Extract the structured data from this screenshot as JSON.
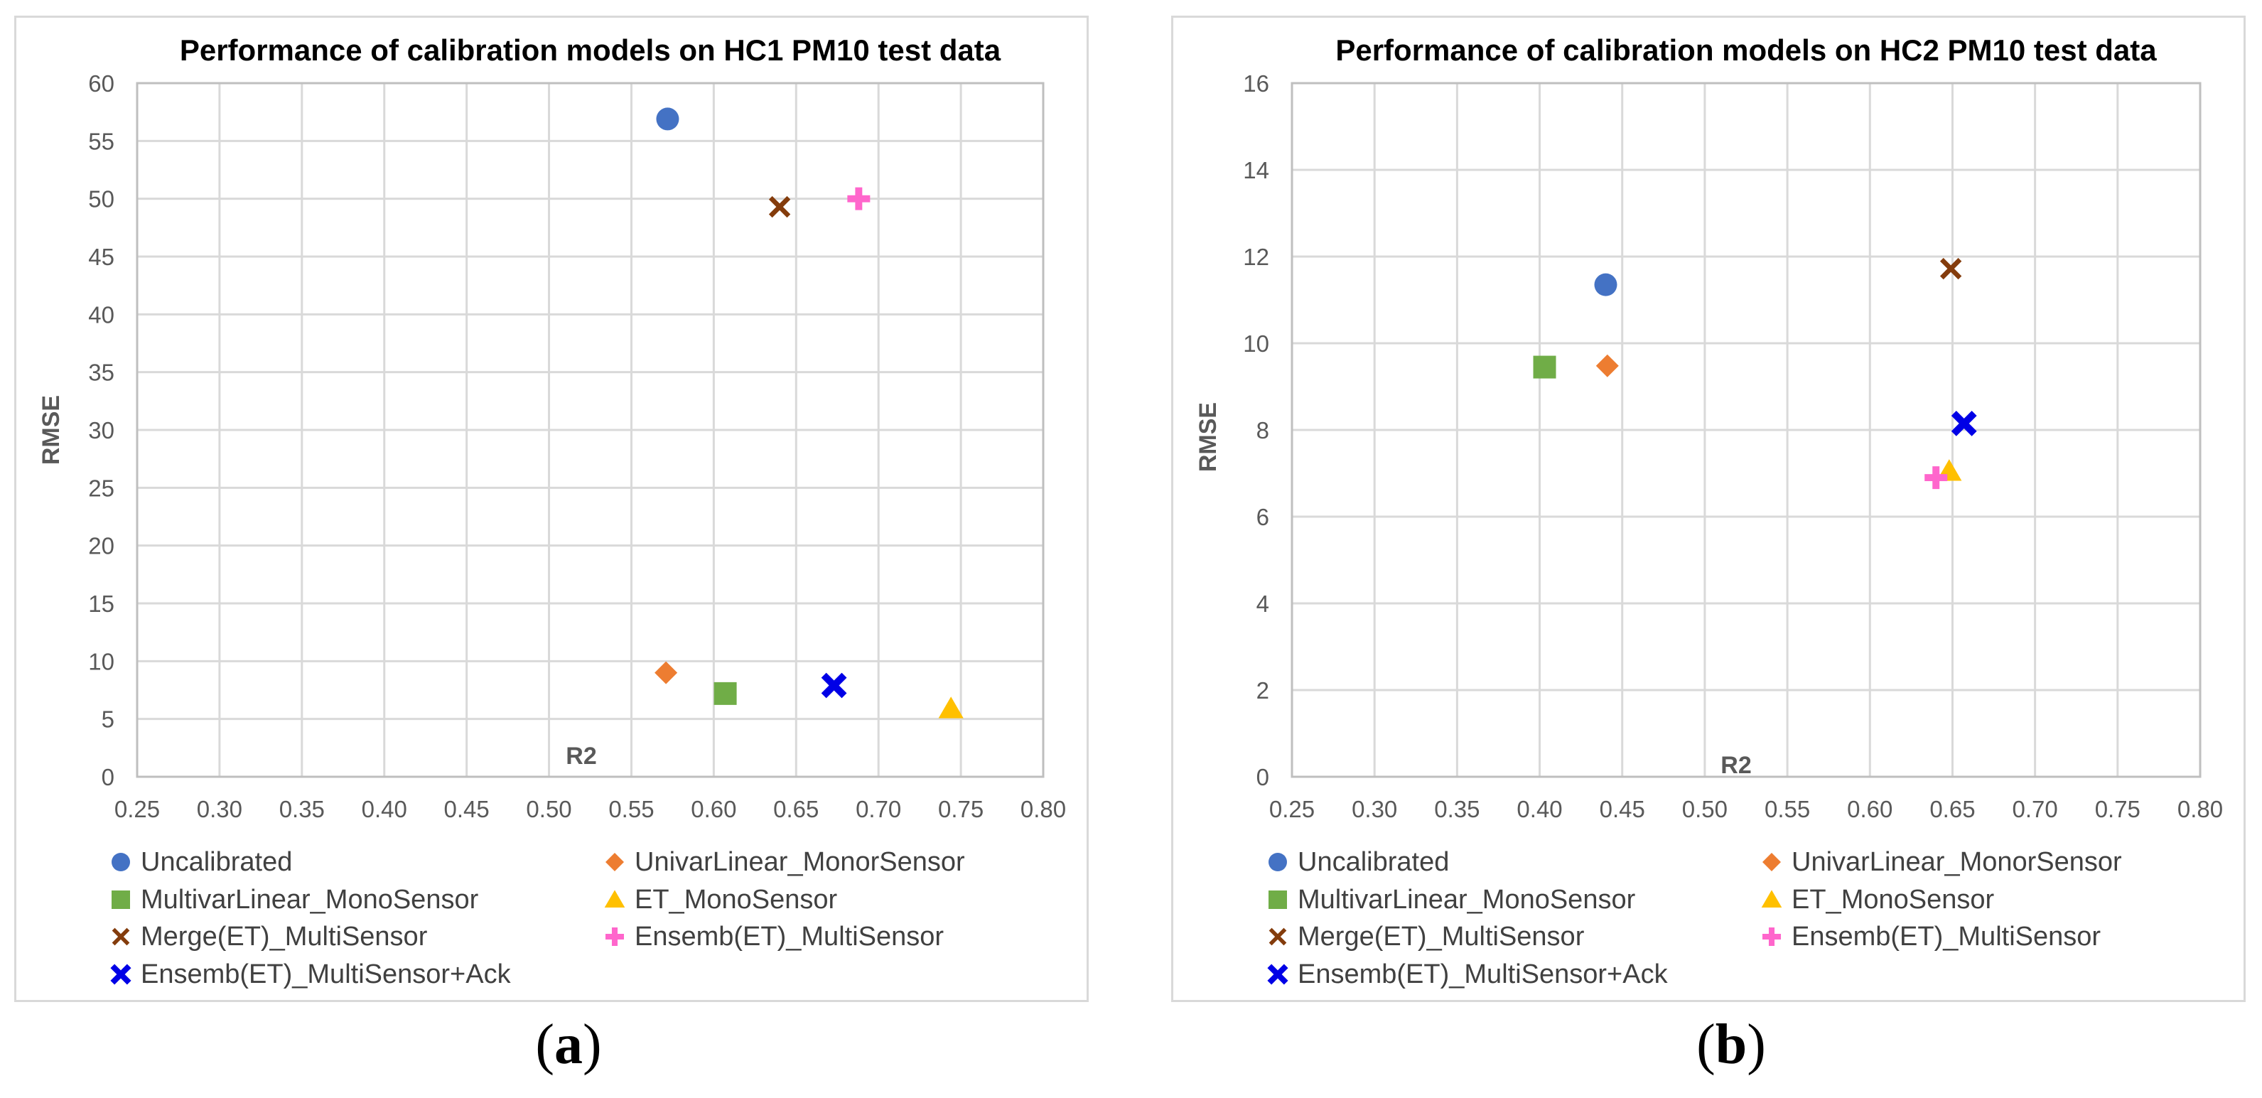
{
  "panels": [
    {
      "caption_letter": "a",
      "chart_data": {
        "type": "scatter",
        "title": "Performance of calibration models on HC1 PM10 test data",
        "xlabel": "R2",
        "ylabel": "RMSE",
        "xlim": [
          0.25,
          0.8
        ],
        "ylim": [
          0,
          60
        ],
        "xticks": [
          "0.25",
          "0.30",
          "0.35",
          "0.40",
          "0.45",
          "0.50",
          "0.55",
          "0.60",
          "0.65",
          "0.70",
          "0.75",
          "0.80"
        ],
        "yticks": [
          "0",
          "5",
          "10",
          "15",
          "20",
          "25",
          "30",
          "35",
          "40",
          "45",
          "50",
          "55",
          "60"
        ],
        "grid": true,
        "legend_position": "bottom",
        "series": [
          {
            "name": "Uncalibrated",
            "marker": "circle",
            "color": "#4472c4",
            "x": 0.572,
            "y": 56.9
          },
          {
            "name": "UnivarLinear_MonorSensor",
            "marker": "diamond",
            "color": "#ed7d31",
            "x": 0.571,
            "y": 9.0
          },
          {
            "name": "MultivarLinear_MonoSensor",
            "marker": "square",
            "color": "#70ad47",
            "x": 0.607,
            "y": 7.2
          },
          {
            "name": "ET_MonoSensor",
            "marker": "triangle",
            "color": "#ffc000",
            "x": 0.744,
            "y": 5.9
          },
          {
            "name": "Merge(ET)_MultiSensor",
            "marker": "x",
            "color": "#843c0c",
            "x": 0.64,
            "y": 49.3
          },
          {
            "name": "Ensemb(ET)_MultiSensor",
            "marker": "plus",
            "color": "#ff66cc",
            "x": 0.688,
            "y": 50.0
          },
          {
            "name": "Ensemb(ET)_MultiSensor+Ack",
            "marker": "xbold",
            "color": "#0000e6",
            "x": 0.673,
            "y": 7.9
          }
        ]
      }
    },
    {
      "caption_letter": "b",
      "chart_data": {
        "type": "scatter",
        "title": "Performance of calibration models on HC2 PM10 test data",
        "xlabel": "R2",
        "ylabel": "RMSE",
        "xlim": [
          0.25,
          0.8
        ],
        "ylim": [
          0,
          16
        ],
        "xticks": [
          "0.25",
          "0.30",
          "0.35",
          "0.40",
          "0.45",
          "0.50",
          "0.55",
          "0.60",
          "0.65",
          "0.70",
          "0.75",
          "0.80"
        ],
        "yticks": [
          "0",
          "2",
          "4",
          "6",
          "8",
          "10",
          "12",
          "14",
          "16"
        ],
        "grid": true,
        "legend_position": "bottom",
        "series": [
          {
            "name": "Uncalibrated",
            "marker": "circle",
            "color": "#4472c4",
            "x": 0.44,
            "y": 11.35
          },
          {
            "name": "UnivarLinear_MonorSensor",
            "marker": "diamond",
            "color": "#ed7d31",
            "x": 0.441,
            "y": 9.48
          },
          {
            "name": "MultivarLinear_MonoSensor",
            "marker": "square",
            "color": "#70ad47",
            "x": 0.403,
            "y": 9.45
          },
          {
            "name": "ET_MonoSensor",
            "marker": "triangle",
            "color": "#ffc000",
            "x": 0.648,
            "y": 7.05
          },
          {
            "name": "Merge(ET)_MultiSensor",
            "marker": "x",
            "color": "#843c0c",
            "x": 0.649,
            "y": 11.72
          },
          {
            "name": "Ensemb(ET)_MultiSensor",
            "marker": "plus",
            "color": "#ff66cc",
            "x": 0.64,
            "y": 6.9
          },
          {
            "name": "Ensemb(ET)_MultiSensor+Ack",
            "marker": "xbold",
            "color": "#0000e6",
            "x": 0.657,
            "y": 8.15
          }
        ]
      }
    }
  ]
}
